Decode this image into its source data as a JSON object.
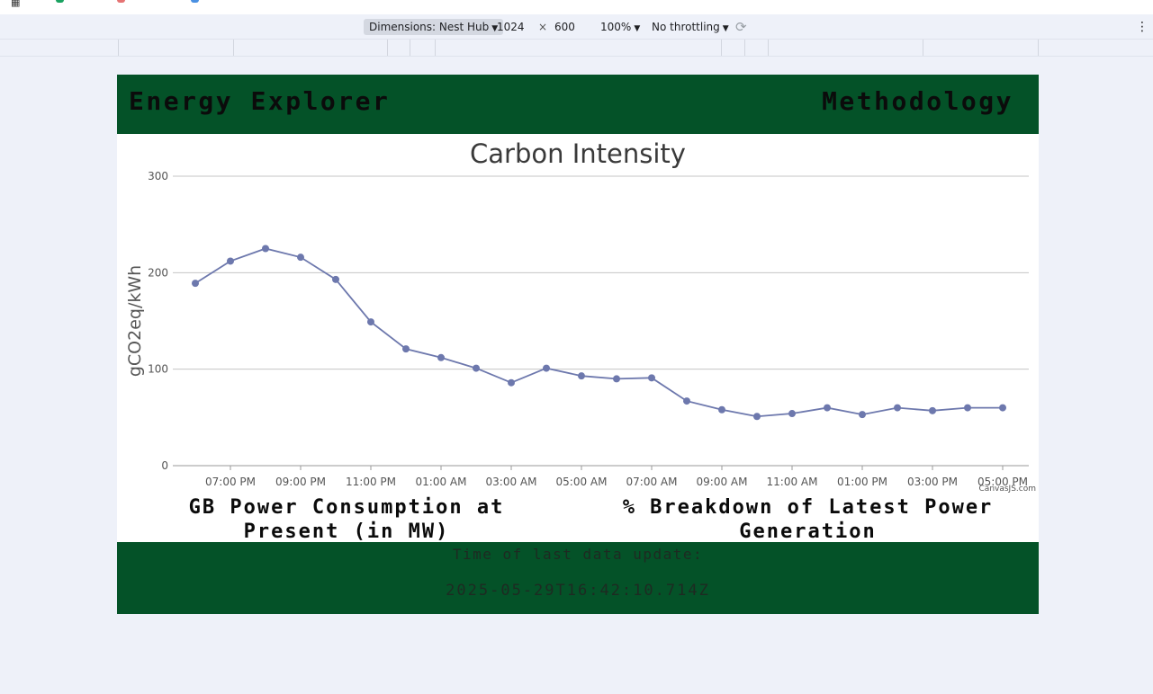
{
  "devtools": {
    "dimensions_label": "Dimensions: Nest Hub",
    "width_value": "1024",
    "times_symbol": "×",
    "height_value": "600",
    "zoom": "100%",
    "throttling": "No throttling",
    "more_symbol": "⋮"
  },
  "site": {
    "title": "Energy Explorer",
    "nav_methodology": "Methodology",
    "panel_consumption_title": "GB Power Consumption at Present (in MW)",
    "panel_breakdown_title": "% Breakdown of Latest Power Generation",
    "footer_label": "Time of last data update:",
    "footer_timestamp": "2025-05-29T16:42:10.714Z",
    "colors": {
      "header_bg": "#045228",
      "line": "#6d78ad"
    }
  },
  "chart_data": {
    "type": "line",
    "title": "Carbon Intensity",
    "ylabel": "gCO2eq/kWh",
    "xlabel": "",
    "ylim": [
      0,
      300
    ],
    "yticks": [
      0,
      100,
      200,
      300
    ],
    "x_tick_labels": [
      "07:00 PM",
      "09:00 PM",
      "11:00 PM",
      "01:00 AM",
      "03:00 AM",
      "05:00 AM",
      "07:00 AM",
      "09:00 AM",
      "11:00 AM",
      "01:00 PM",
      "03:00 PM",
      "05:00 PM"
    ],
    "x": [
      "06:00 PM",
      "07:00 PM",
      "08:00 PM",
      "09:00 PM",
      "10:00 PM",
      "11:00 PM",
      "12:00 AM",
      "01:00 AM",
      "02:00 AM",
      "03:00 AM",
      "04:00 AM",
      "05:00 AM",
      "06:00 AM",
      "07:00 AM",
      "08:00 AM",
      "09:00 AM",
      "10:00 AM",
      "11:00 AM",
      "12:00 PM",
      "01:00 PM",
      "02:00 PM",
      "03:00 PM",
      "04:00 PM",
      "05:00 PM"
    ],
    "values": [
      189,
      212,
      225,
      216,
      193,
      149,
      121,
      112,
      101,
      86,
      101,
      93,
      90,
      91,
      67,
      58,
      51,
      54,
      60,
      53,
      60,
      57,
      60,
      60
    ],
    "grid": true,
    "credit": "CanvasJS.com"
  }
}
